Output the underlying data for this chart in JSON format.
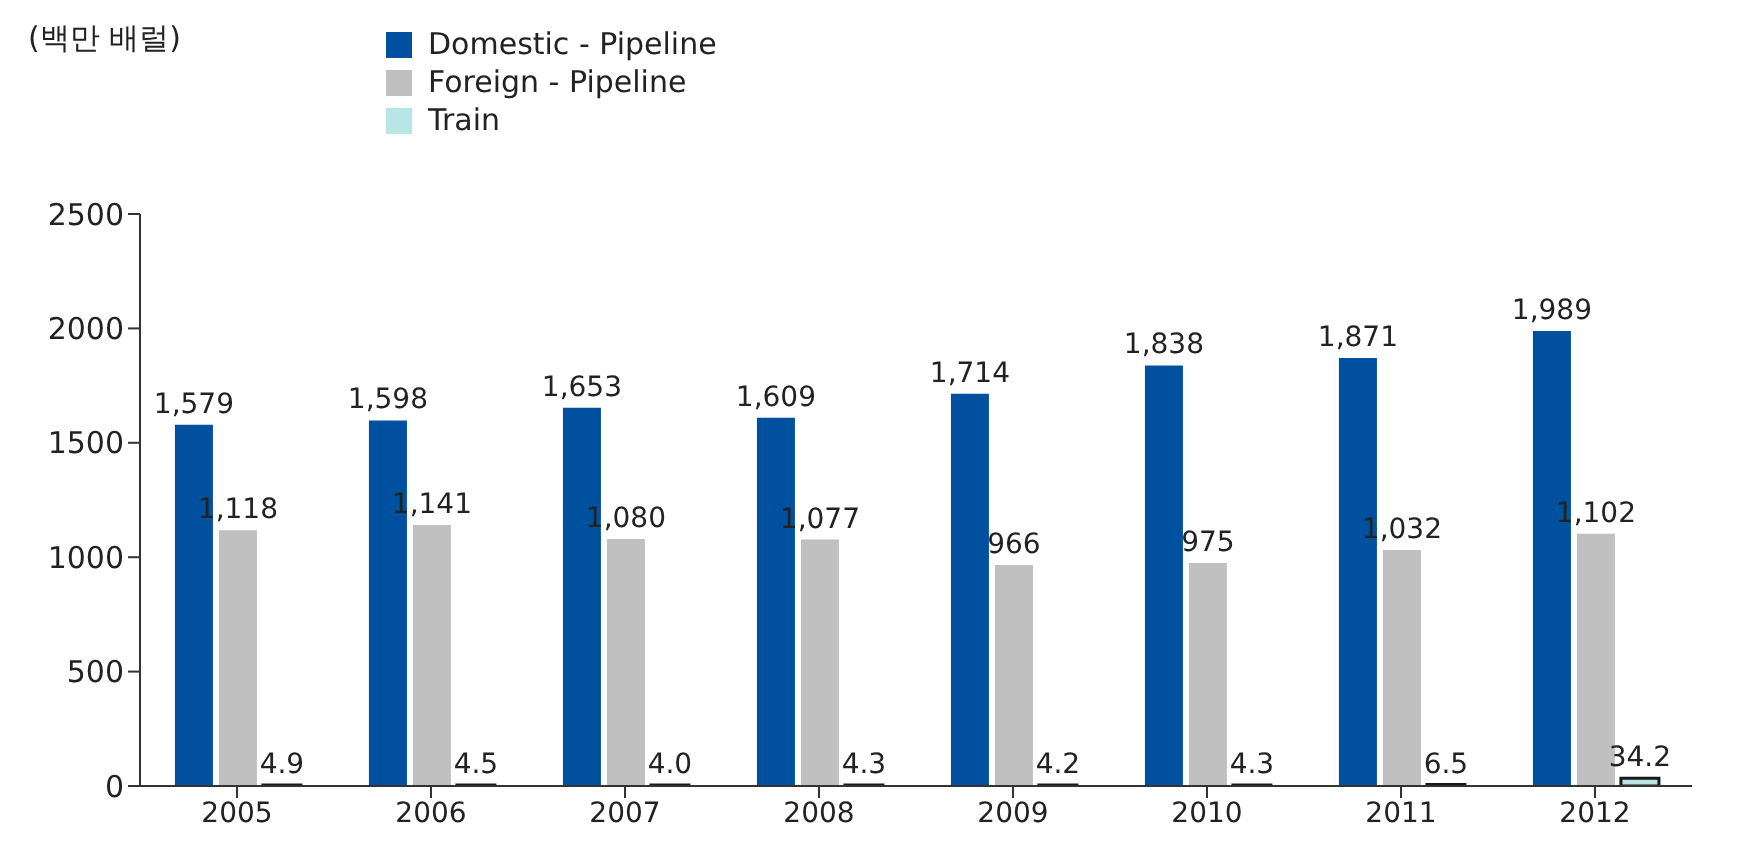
{
  "chart_data": {
    "type": "bar",
    "ylabel": "(백만 배럴)",
    "categories": [
      "2005",
      "2006",
      "2007",
      "2008",
      "2009",
      "2010",
      "2011",
      "2012"
    ],
    "series": [
      {
        "name": "Domestic - Pipeline",
        "color": "#0050a0",
        "values": [
          1579,
          1598,
          1653,
          1609,
          1714,
          1838,
          1871,
          1989
        ],
        "value_labels": [
          "1,579",
          "1,598",
          "1,653",
          "1,609",
          "1,714",
          "1,838",
          "1,871",
          "1,989"
        ]
      },
      {
        "name": "Foreign - Pipeline",
        "color": "#c0c0c0",
        "values": [
          1118,
          1141,
          1080,
          1077,
          966,
          975,
          1032,
          1102
        ],
        "value_labels": [
          "1,118",
          "1,141",
          "1,080",
          "1,077",
          "966",
          "975",
          "1,032",
          "1,102"
        ]
      },
      {
        "name": "Train",
        "color": "#b8e6e6",
        "values": [
          4.9,
          4.5,
          4.0,
          4.3,
          4.2,
          4.3,
          6.5,
          34.2
        ],
        "value_labels": [
          "4.9",
          "4.5",
          "4.0",
          "4.3",
          "4.2",
          "4.3",
          "6.5",
          "34.2"
        ]
      }
    ],
    "ylim": [
      0,
      2500
    ],
    "yticks": [
      0,
      500,
      1000,
      1500,
      2000,
      2500
    ],
    "grid": false,
    "legend": "top"
  }
}
